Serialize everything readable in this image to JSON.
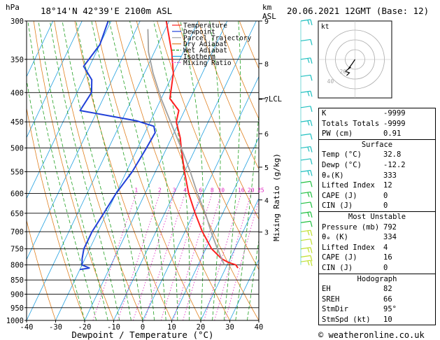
{
  "header": {
    "pressure_unit": "hPa",
    "location": "18°14'N  42°39'E  2100m  ASL",
    "height_unit": "km",
    "height_unit_sub": "ASL",
    "datetime": "20.06.2021  12GMT  (Base: 12)"
  },
  "legend": [
    "Temperature",
    "Dewpoint",
    "Parcel Trajectory",
    "Dry Adiabat",
    "Wet Adiabat",
    "Isotherm",
    "Mixing Ratio"
  ],
  "colors": {
    "temperature": "#ff2020",
    "dewpoint": "#2040d8",
    "parcel": "#a0a0a0",
    "dry_adiabat": "#e08020",
    "wet_adiabat": "#20a020",
    "isotherm": "#20a0e0",
    "mixing_ratio": "#e020c0"
  },
  "chart_data": {
    "type": "line",
    "title": "",
    "xlabel": "Dewpoint / Temperature (°C)",
    "ylabel_right": "Mixing Ratio (g/kg)",
    "xlim": [
      -40,
      40
    ],
    "pressure_levels": [
      300,
      350,
      400,
      450,
      500,
      550,
      600,
      650,
      700,
      750,
      800,
      850,
      900,
      950,
      1000
    ],
    "x_ticks": [
      -40,
      -30,
      -20,
      -10,
      0,
      10,
      20,
      30,
      40
    ],
    "km_ticks": [
      {
        "label": "9",
        "p": 300
      },
      {
        "label": "8",
        "p": 356
      },
      {
        "label": "7",
        "p": 411
      },
      {
        "label": "6",
        "p": 472
      },
      {
        "label": "5",
        "p": 540
      },
      {
        "label": "4",
        "p": 616
      },
      {
        "label": "3",
        "p": 701
      }
    ],
    "lcl": {
      "label": "LCL",
      "p": 410
    },
    "mixing_ratio_labels": [
      "1",
      "2",
      "3",
      "4",
      "6",
      "8",
      "10",
      "16",
      "20",
      "25"
    ],
    "series": [
      {
        "key": "temperature",
        "points": [
          [
            300,
            -41
          ],
          [
            340,
            -34
          ],
          [
            370,
            -30
          ],
          [
            410,
            -27
          ],
          [
            430,
            -22
          ],
          [
            450,
            -21
          ],
          [
            480,
            -17
          ],
          [
            500,
            -15
          ],
          [
            550,
            -10
          ],
          [
            600,
            -5
          ],
          [
            650,
            0.5
          ],
          [
            700,
            6
          ],
          [
            750,
            12
          ],
          [
            780,
            17
          ],
          [
            792,
            20
          ],
          [
            800,
            23
          ],
          [
            810,
            24.2
          ]
        ]
      },
      {
        "key": "dewpoint",
        "points": [
          [
            300,
            -61
          ],
          [
            330,
            -60
          ],
          [
            360,
            -62
          ],
          [
            380,
            -57
          ],
          [
            400,
            -55
          ],
          [
            430,
            -56
          ],
          [
            448,
            -35
          ],
          [
            458,
            -28
          ],
          [
            470,
            -26.5
          ],
          [
            500,
            -27
          ],
          [
            550,
            -28
          ],
          [
            600,
            -30
          ],
          [
            650,
            -31
          ],
          [
            700,
            -32
          ],
          [
            750,
            -32
          ],
          [
            780,
            -31
          ],
          [
            800,
            -30
          ],
          [
            810,
            -27
          ],
          [
            815,
            -30
          ]
        ]
      },
      {
        "key": "parcel",
        "points": [
          [
            310,
            -46
          ],
          [
            340,
            -42
          ],
          [
            370,
            -37
          ],
          [
            410,
            -30
          ],
          [
            450,
            -23
          ],
          [
            500,
            -15
          ],
          [
            550,
            -8
          ],
          [
            600,
            -2
          ],
          [
            650,
            4
          ],
          [
            700,
            9
          ],
          [
            750,
            14
          ],
          [
            800,
            19
          ]
        ]
      }
    ]
  },
  "hodograph": {
    "label": "kt",
    "ring_labels": [
      "20",
      "40"
    ]
  },
  "indices": [
    {
      "label": "K",
      "value": "-9999"
    },
    {
      "label": "Totals Totals",
      "value": "-9999"
    },
    {
      "label": "PW (cm)",
      "value": "0.91"
    }
  ],
  "surface": {
    "title": "Surface",
    "rows": [
      {
        "label": "Temp (°C)",
        "value": "32.8"
      },
      {
        "label": "Dewp (°C)",
        "value": "-12.2"
      },
      {
        "label": "θₑ(K)",
        "value": "333"
      },
      {
        "label": "Lifted Index",
        "value": "12"
      },
      {
        "label": "CAPE (J)",
        "value": "0"
      },
      {
        "label": "CIN (J)",
        "value": "0"
      }
    ]
  },
  "most_unstable": {
    "title": "Most Unstable",
    "rows": [
      {
        "label": "Pressure (mb)",
        "value": "792"
      },
      {
        "label": "θₑ (K)",
        "value": "334"
      },
      {
        "label": "Lifted Index",
        "value": "4"
      },
      {
        "label": "CAPE (J)",
        "value": "16"
      },
      {
        "label": "CIN (J)",
        "value": "0"
      }
    ]
  },
  "hodograph_table": {
    "title": "Hodograph",
    "rows": [
      {
        "label": "EH",
        "value": "82"
      },
      {
        "label": "SREH",
        "value": "66"
      },
      {
        "label": "StmDir",
        "value": "95°"
      },
      {
        "label": "StmSpd (kt)",
        "value": "10"
      }
    ]
  },
  "footer": "© weatheronline.co.uk"
}
